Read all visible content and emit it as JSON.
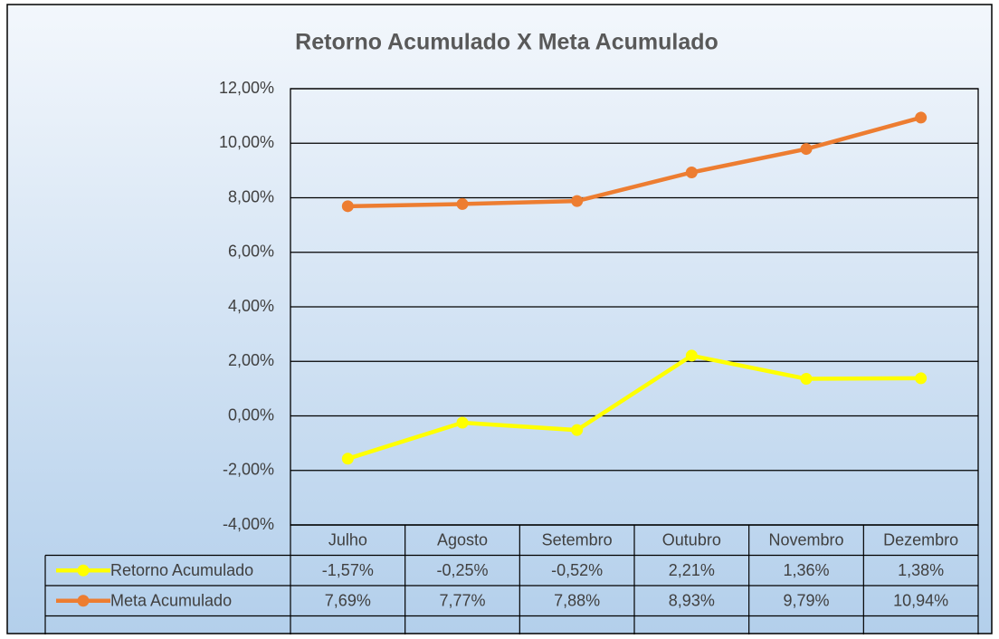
{
  "chart_data": {
    "type": "line",
    "title": "Retorno Acumulado X Meta Acumulado",
    "categories": [
      "Julho",
      "Agosto",
      "Setembro",
      "Outubro",
      "Novembro",
      "Dezembro"
    ],
    "series": [
      {
        "name": "Retorno Acumulado",
        "color": "#ffff00",
        "values": [
          -1.57,
          -0.25,
          -0.52,
          2.21,
          1.36,
          1.38
        ],
        "value_labels": [
          "-1,57%",
          "-0,25%",
          "-0,52%",
          "2,21%",
          "1,36%",
          "1,38%"
        ]
      },
      {
        "name": "Meta Acumulado",
        "color": "#ed7d31",
        "values": [
          7.69,
          7.77,
          7.88,
          8.93,
          9.79,
          10.94
        ],
        "value_labels": [
          "7,69%",
          "7,77%",
          "7,88%",
          "8,93%",
          "9,79%",
          "10,94%"
        ]
      }
    ],
    "ylim": [
      -4,
      12
    ],
    "yticks": [
      {
        "value": -4,
        "label": "-4,00%"
      },
      {
        "value": -2,
        "label": "-2,00%"
      },
      {
        "value": 0,
        "label": "0,00%"
      },
      {
        "value": 2,
        "label": "2,00%"
      },
      {
        "value": 4,
        "label": "4,00%"
      },
      {
        "value": 6,
        "label": "6,00%"
      },
      {
        "value": 8,
        "label": "8,00%"
      },
      {
        "value": 10,
        "label": "10,00%"
      },
      {
        "value": 12,
        "label": "12,00%"
      }
    ],
    "grid": true
  }
}
